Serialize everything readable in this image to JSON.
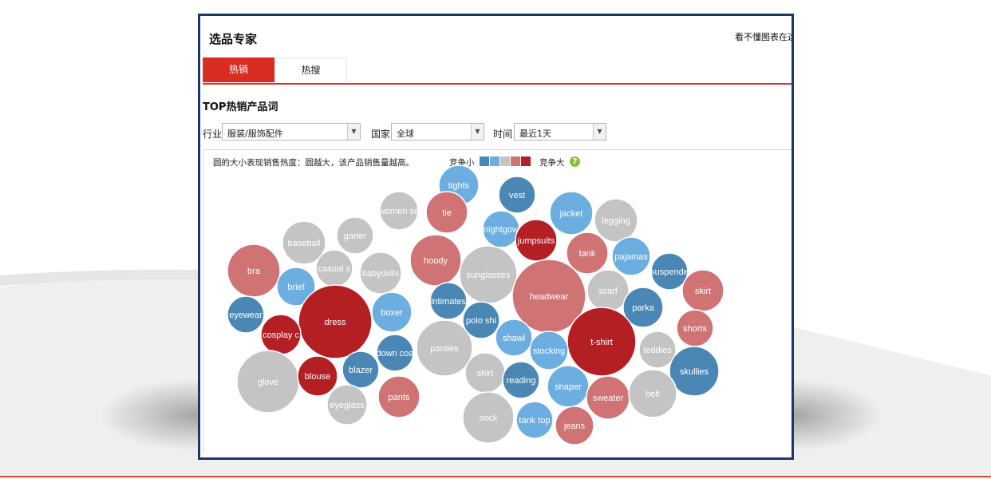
{
  "panel": {
    "title": "选品专家",
    "help_link": "看不懂图表在这",
    "tabs": [
      {
        "label": "热销",
        "active": true
      },
      {
        "label": "热搜",
        "active": false
      }
    ],
    "section_title": "TOP热销产品词",
    "filters": {
      "industry": {
        "label": "行业",
        "value": "服装/服饰配件"
      },
      "country": {
        "label": "国家",
        "value": "全球"
      },
      "time": {
        "label": "时间",
        "value": "最近1天"
      }
    },
    "chart_note": "圆的大小表现销售热度：圆越大，该产品销售量越高。",
    "legend": {
      "small_label": "竞争小",
      "large_label": "竞争大",
      "help_icon": "question-icon",
      "colors": [
        "#4a87b5",
        "#6caee0",
        "#c4c4c4",
        "#d07374",
        "#b41f24"
      ]
    }
  },
  "chart_data": {
    "type": "bubble",
    "color_scale": "competition level 1 (small) to 5 (large)",
    "bubbles": [
      {
        "label": "tights",
        "level": 2
      },
      {
        "label": "vest",
        "level": 1
      },
      {
        "label": "tie",
        "level": 4
      },
      {
        "label": "women se",
        "level": 3
      },
      {
        "label": "jacket",
        "level": 2
      },
      {
        "label": "legging",
        "level": 3
      },
      {
        "label": "nightgow",
        "level": 2
      },
      {
        "label": "jumpsuits",
        "level": 5
      },
      {
        "label": "garter",
        "level": 3
      },
      {
        "label": "baseball",
        "level": 3
      },
      {
        "label": "hoody",
        "level": 4
      },
      {
        "label": "tank",
        "level": 4
      },
      {
        "label": "pajamas",
        "level": 2
      },
      {
        "label": "bra",
        "level": 4
      },
      {
        "label": "casual s",
        "level": 3
      },
      {
        "label": "babydolls",
        "level": 3
      },
      {
        "label": "sunglasses",
        "level": 3
      },
      {
        "label": "suspende",
        "level": 1
      },
      {
        "label": "skirt",
        "level": 4
      },
      {
        "label": "brief",
        "level": 2
      },
      {
        "label": "headwear",
        "level": 4
      },
      {
        "label": "scarf",
        "level": 3
      },
      {
        "label": "intimates",
        "level": 1
      },
      {
        "label": "eyewear",
        "level": 1
      },
      {
        "label": "dress",
        "level": 5
      },
      {
        "label": "boxer",
        "level": 2
      },
      {
        "label": "parka",
        "level": 1
      },
      {
        "label": "polo shi",
        "level": 1
      },
      {
        "label": "cosplay c",
        "level": 5
      },
      {
        "label": "shorts",
        "level": 4
      },
      {
        "label": "shawl",
        "level": 2
      },
      {
        "label": "t-shirt",
        "level": 5
      },
      {
        "label": "panties",
        "level": 3
      },
      {
        "label": "down coa",
        "level": 1
      },
      {
        "label": "stocking",
        "level": 2
      },
      {
        "label": "teddies",
        "level": 3
      },
      {
        "label": "blazer",
        "level": 1
      },
      {
        "label": "skullies",
        "level": 1
      },
      {
        "label": "glove",
        "level": 3
      },
      {
        "label": "blouse",
        "level": 5
      },
      {
        "label": "shirt",
        "level": 3
      },
      {
        "label": "reading",
        "level": 1
      },
      {
        "label": "shaper",
        "level": 2
      },
      {
        "label": "sweater",
        "level": 4
      },
      {
        "label": "belt",
        "level": 3
      },
      {
        "label": "pants",
        "level": 4
      },
      {
        "label": "eyeglass",
        "level": 3
      },
      {
        "label": "sock",
        "level": 3
      },
      {
        "label": "tank top",
        "level": 2
      },
      {
        "label": "jeans",
        "level": 4
      }
    ]
  }
}
